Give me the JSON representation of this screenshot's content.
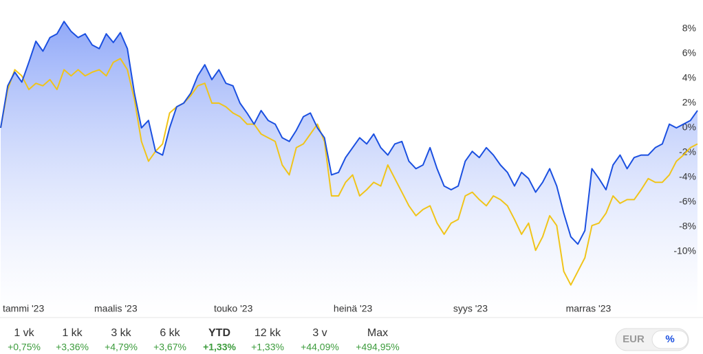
{
  "chart_data": {
    "type": "line",
    "categories": [
      "tammi '23",
      null,
      null,
      null,
      null,
      null,
      null,
      null,
      null,
      null,
      null,
      null,
      null,
      "maalis '23",
      null,
      null,
      null,
      null,
      null,
      null,
      null,
      null,
      null,
      null,
      null,
      null,
      null,
      null,
      null,
      null,
      "touko '23",
      null,
      null,
      null,
      null,
      null,
      null,
      null,
      null,
      null,
      null,
      null,
      null,
      null,
      null,
      null,
      null,
      "heinä '23",
      null,
      null,
      null,
      null,
      null,
      null,
      null,
      null,
      null,
      null,
      null,
      null,
      null,
      null,
      null,
      null,
      "syys '23",
      null,
      null,
      null,
      null,
      null,
      null,
      null,
      null,
      null,
      null,
      null,
      null,
      null,
      null,
      null,
      "marras '23",
      null,
      null,
      null,
      null,
      null,
      null,
      null,
      null,
      null,
      null,
      null,
      null,
      null,
      null,
      null,
      null,
      null,
      null,
      null
    ],
    "series": [
      {
        "color": "#f0c419",
        "values": [
          0,
          3.1,
          4.7,
          4.2,
          3.1,
          3.6,
          3.4,
          3.9,
          3.1,
          4.7,
          4.2,
          4.7,
          4.2,
          4.5,
          4.7,
          4.2,
          5.3,
          5.6,
          4.7,
          2.3,
          -1.1,
          -2.7,
          -1.9,
          -1.3,
          1.2,
          1.7,
          2.0,
          2.6,
          3.4,
          3.6,
          2.0,
          2.0,
          1.7,
          1.2,
          0.9,
          0.3,
          0.3,
          -0.5,
          -0.8,
          -1.1,
          -3.0,
          -3.8,
          -1.6,
          -1.3,
          -0.5,
          0.3,
          -1.1,
          -5.5,
          -5.5,
          -4.4,
          -3.8,
          -5.5,
          -5.0,
          -4.4,
          -4.7,
          -3.0,
          -4.1,
          -5.2,
          -6.3,
          -7.1,
          -6.6,
          -6.3,
          -7.7,
          -8.6,
          -7.7,
          -7.4,
          -5.5,
          -5.2,
          -5.8,
          -6.3,
          -5.5,
          -5.8,
          -6.3,
          -7.4,
          -8.6,
          -7.7,
          -9.9,
          -8.8,
          -7.1,
          -7.9,
          -11.6,
          -12.7,
          -11.6,
          -10.5,
          -7.9,
          -7.7,
          -6.9,
          -5.5,
          -6.1,
          -5.8,
          -5.8,
          -5.0,
          -4.1,
          -4.4,
          -4.4,
          -3.8,
          -2.7,
          -2.2,
          -1.6,
          -1.3
        ]
      },
      {
        "color": "#1a4fe0",
        "area": true,
        "values": [
          0,
          3.4,
          4.5,
          3.7,
          5.3,
          7,
          6.2,
          7.3,
          7.6,
          8.6,
          7.8,
          7.3,
          7.6,
          6.7,
          6.4,
          7.6,
          6.9,
          7.7,
          6.4,
          2.8,
          0,
          0.6,
          -1.9,
          -2.2,
          0,
          1.7,
          2.0,
          2.8,
          4.2,
          5.1,
          3.9,
          4.7,
          3.6,
          3.4,
          2.0,
          1.2,
          0.3,
          1.4,
          0.6,
          0.3,
          -0.8,
          -1.1,
          -0.2,
          0.9,
          1.2,
          0,
          -0.8,
          -3.8,
          -3.6,
          -2.4,
          -1.6,
          -0.8,
          -1.3,
          -0.5,
          -1.6,
          -2.2,
          -1.3,
          -1.1,
          -2.7,
          -3.3,
          -3.0,
          -1.6,
          -3.3,
          -4.7,
          -5.0,
          -4.7,
          -2.7,
          -1.9,
          -2.4,
          -1.6,
          -2.2,
          -3.0,
          -3.6,
          -4.7,
          -3.6,
          -4.1,
          -5.2,
          -4.4,
          -3.3,
          -4.7,
          -6.9,
          -8.8,
          -9.4,
          -8.3,
          -3.3,
          -4.1,
          -5.0,
          -3.0,
          -2.2,
          -3.3,
          -2.4,
          -2.2,
          -2.2,
          -1.6,
          -1.3,
          0.3,
          0,
          0.3,
          0.6,
          1.4
        ]
      }
    ],
    "ylim": [
      -14,
      10
    ],
    "yticks": [
      {
        "value": 8,
        "label": "8%"
      },
      {
        "value": 6,
        "label": "6%"
      },
      {
        "value": 4,
        "label": "4%"
      },
      {
        "value": 2,
        "label": "2%"
      },
      {
        "value": 0,
        "label": "0%"
      },
      {
        "value": -2,
        "label": "-2%"
      },
      {
        "value": -4,
        "label": "-4%"
      },
      {
        "value": -6,
        "label": "-6%"
      },
      {
        "value": -8,
        "label": "-8%"
      },
      {
        "value": -10,
        "label": "-10%"
      }
    ],
    "grid": false
  },
  "periods": [
    {
      "label": "1 vk",
      "change": "+0,75%"
    },
    {
      "label": "1 kk",
      "change": "+3,36%"
    },
    {
      "label": "3 kk",
      "change": "+4,79%"
    },
    {
      "label": "6 kk",
      "change": "+3,67%"
    },
    {
      "label": "YTD",
      "change": "+1,33%",
      "selected": true
    },
    {
      "label": "12 kk",
      "change": "+1,33%"
    },
    {
      "label": "3 v",
      "change": "+44,09%"
    },
    {
      "label": "Max",
      "change": "+494,95%"
    }
  ],
  "toggle": [
    {
      "label": "EUR"
    },
    {
      "label": "%",
      "selected": true
    }
  ]
}
